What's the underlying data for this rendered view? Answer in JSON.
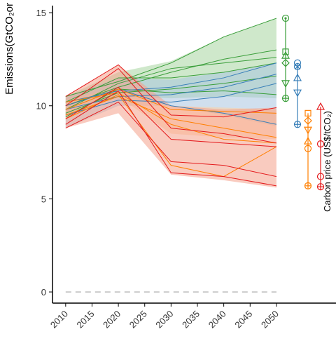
{
  "chart_data": {
    "type": "line",
    "y_label": "Emissions(GtCO₂or",
    "y2_label": "Carbon price (US$/tCO₂)",
    "x": [
      2010,
      2020,
      2030,
      2040,
      2050
    ],
    "xlim": [
      2007.5,
      2061.3
    ],
    "xticks": [
      2010,
      2015,
      2020,
      2025,
      2030,
      2035,
      2040,
      2045,
      2050
    ],
    "ylim": [
      -0.6,
      15.38
    ],
    "yticks": [
      0,
      5,
      10,
      15
    ],
    "zero_line": true,
    "bands": [
      {
        "color": "#a8d5a0",
        "upper": [
          10.5,
          11.8,
          12.4,
          13.7,
          14.7
        ],
        "lower": [
          9.4,
          10.5,
          10.4,
          10.5,
          10.4
        ]
      },
      {
        "color": "#a9c4e0",
        "upper": [
          10.5,
          11.5,
          11.4,
          11.8,
          12.3
        ],
        "lower": [
          8.8,
          10.0,
          10.0,
          9.5,
          8.9
        ]
      },
      {
        "color": "#fdd0a2",
        "upper": [
          10.3,
          11.0,
          10.0,
          9.9,
          9.8
        ],
        "lower": [
          9.3,
          10.5,
          8.5,
          8.3,
          8.2
        ]
      },
      {
        "color": "#f4a08a",
        "upper": [
          10.5,
          12.2,
          10.0,
          9.8,
          9.9
        ],
        "lower": [
          8.8,
          9.6,
          6.3,
          6.0,
          5.6
        ]
      }
    ],
    "series": [
      {
        "color": "#3a9e3a",
        "values": [
          10.5,
          11.3,
          12.3,
          13.7,
          14.7
        ]
      },
      {
        "color": "#3a9e3a",
        "values": [
          10.0,
          11.0,
          11.8,
          12.5,
          13.0
        ]
      },
      {
        "color": "#3a9e3a",
        "values": [
          9.8,
          11.2,
          12.0,
          12.3,
          12.6
        ]
      },
      {
        "color": "#3a9e3a",
        "values": [
          10.2,
          11.5,
          11.5,
          11.8,
          12.3
        ]
      },
      {
        "color": "#3a9e3a",
        "values": [
          9.6,
          10.7,
          10.9,
          11.2,
          11.6
        ]
      },
      {
        "color": "#3a9e3a",
        "values": [
          9.4,
          10.9,
          10.7,
          10.8,
          10.6
        ]
      },
      {
        "color": "#377eb8",
        "values": [
          10.2,
          10.8,
          11.0,
          11.5,
          12.3
        ]
      },
      {
        "color": "#377eb8",
        "values": [
          9.8,
          10.5,
          10.6,
          11.0,
          11.7
        ]
      },
      {
        "color": "#377eb8",
        "values": [
          9.5,
          10.3,
          10.2,
          10.5,
          11.2
        ]
      },
      {
        "color": "#377eb8",
        "values": [
          10.0,
          10.9,
          10.0,
          9.6,
          9.0
        ]
      },
      {
        "color": "#ff7f00",
        "values": [
          9.8,
          10.9,
          9.8,
          9.7,
          9.6
        ]
      },
      {
        "color": "#ff7f00",
        "values": [
          9.5,
          10.5,
          9.3,
          8.8,
          8.3
        ]
      },
      {
        "color": "#ff7f00",
        "values": [
          10.2,
          10.7,
          9.0,
          8.2,
          8.0
        ]
      },
      {
        "color": "#ff7f00",
        "values": [
          9.3,
          10.6,
          6.8,
          6.2,
          7.8
        ]
      },
      {
        "color": "#e41a1c",
        "values": [
          10.5,
          12.2,
          9.5,
          9.4,
          9.9
        ]
      },
      {
        "color": "#e41a1c",
        "values": [
          10.0,
          12.0,
          8.8,
          8.5,
          8.0
        ]
      },
      {
        "color": "#e41a1c",
        "values": [
          9.3,
          11.0,
          8.2,
          8.0,
          7.8
        ]
      },
      {
        "color": "#e41a1c",
        "values": [
          8.8,
          10.2,
          7.0,
          6.8,
          6.2
        ]
      },
      {
        "color": "#e41a1c",
        "values": [
          9.0,
          10.8,
          6.4,
          6.2,
          5.7
        ]
      }
    ],
    "markers": [
      {
        "color": "#3a9e3a",
        "shapes": [
          "circle-dot",
          "square",
          "triangle",
          "diamond",
          "down-triangle",
          "circle-plus"
        ],
        "values": [
          14.7,
          12.9,
          12.7,
          12.3,
          11.2,
          10.4
        ]
      },
      {
        "color": "#377eb8",
        "shapes": [
          "circle",
          "circle-x",
          "triangle",
          "down-triangle",
          "circle-plus"
        ],
        "values": [
          12.3,
          12.1,
          11.5,
          10.7,
          9.0
        ]
      },
      {
        "color": "#ff7f00",
        "shapes": [
          "square",
          "diamond",
          "down-triangle",
          "triangle",
          "circle",
          "circle-plus"
        ],
        "values": [
          9.6,
          9.2,
          8.7,
          8.1,
          7.7,
          5.7
        ]
      },
      {
        "color": "#e41a1c",
        "shapes": [
          "triangle",
          "circle",
          "circle",
          "circle-plus"
        ],
        "values": [
          9.95,
          7.95,
          6.2,
          5.65
        ]
      }
    ]
  }
}
